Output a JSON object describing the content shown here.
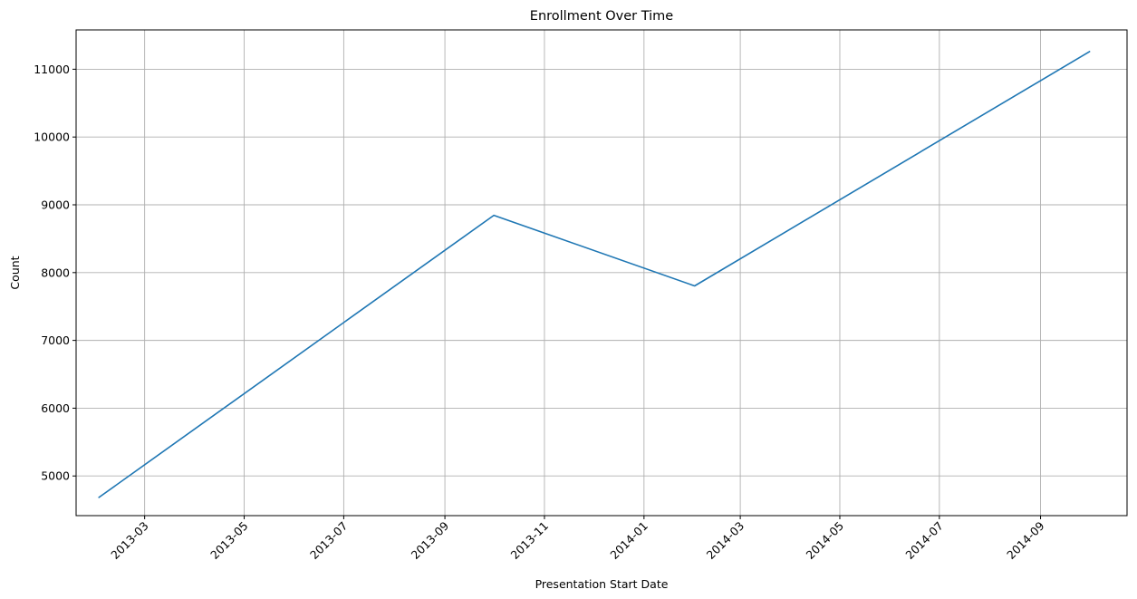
{
  "chart_data": {
    "type": "line",
    "title": "Enrollment Over Time",
    "xlabel": "Presentation Start Date",
    "ylabel": "Count",
    "x_type": "date",
    "grid": true,
    "legend": "none",
    "xlim": [
      "2013-01-18",
      "2014-10-24"
    ],
    "ylim": [
      4415,
      11580
    ],
    "x_ticks": [
      "2013-03",
      "2013-05",
      "2013-07",
      "2013-09",
      "2013-11",
      "2014-01",
      "2014-03",
      "2014-05",
      "2014-07",
      "2014-09"
    ],
    "y_ticks": [
      5000,
      6000,
      7000,
      8000,
      9000,
      10000,
      11000
    ],
    "series": [
      {
        "color": "#1f77b4",
        "x": [
          "2013-02-01",
          "2013-10-01",
          "2014-02-01",
          "2014-10-01"
        ],
        "y": [
          4684,
          8845,
          7804,
          11260
        ]
      }
    ]
  }
}
